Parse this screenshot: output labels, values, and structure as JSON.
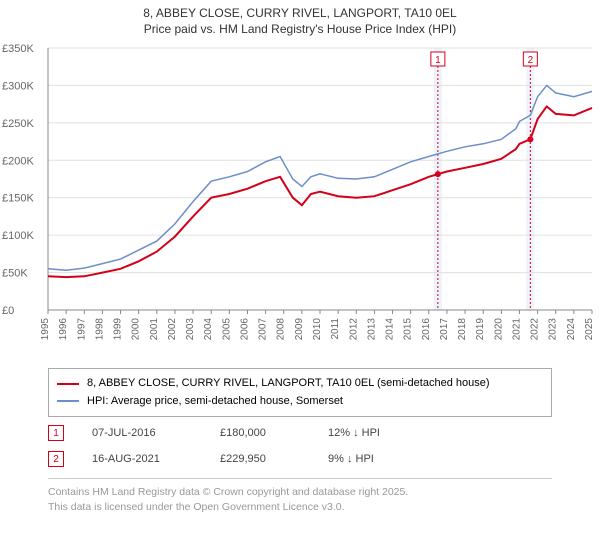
{
  "title": {
    "line1": "8, ABBEY CLOSE, CURRY RIVEL, LANGPORT, TA10 0EL",
    "line2": "Price paid vs. HM Land Registry's House Price Index (HPI)"
  },
  "chart": {
    "type": "line",
    "background_color": "#ffffff",
    "grid_color": "#e0e0e0",
    "axis_color": "#888888",
    "x": {
      "min": 1995,
      "max": 2025,
      "ticks": [
        1995,
        1996,
        1997,
        1998,
        1999,
        2000,
        2001,
        2002,
        2003,
        2004,
        2005,
        2006,
        2007,
        2008,
        2009,
        2010,
        2011,
        2012,
        2013,
        2014,
        2015,
        2016,
        2017,
        2018,
        2019,
        2020,
        2021,
        2022,
        2023,
        2024,
        2025
      ]
    },
    "y": {
      "min": 0,
      "max": 350000,
      "ticks": [
        0,
        50000,
        100000,
        150000,
        200000,
        250000,
        300000,
        350000
      ],
      "tick_labels": [
        "£0",
        "£50K",
        "£100K",
        "£150K",
        "£200K",
        "£250K",
        "£300K",
        "£350K"
      ]
    },
    "series": [
      {
        "name": "red",
        "color": "#d4001a",
        "width": 2,
        "points": [
          [
            1995,
            45000
          ],
          [
            1996,
            44000
          ],
          [
            1997,
            45000
          ],
          [
            1998,
            50000
          ],
          [
            1999,
            55000
          ],
          [
            2000,
            65000
          ],
          [
            2001,
            78000
          ],
          [
            2002,
            98000
          ],
          [
            2003,
            125000
          ],
          [
            2004,
            150000
          ],
          [
            2005,
            155000
          ],
          [
            2006,
            162000
          ],
          [
            2007,
            172000
          ],
          [
            2007.8,
            178000
          ],
          [
            2008.5,
            150000
          ],
          [
            2009,
            140000
          ],
          [
            2009.5,
            155000
          ],
          [
            2010,
            158000
          ],
          [
            2011,
            152000
          ],
          [
            2012,
            150000
          ],
          [
            2013,
            152000
          ],
          [
            2014,
            160000
          ],
          [
            2015,
            168000
          ],
          [
            2016,
            178000
          ],
          [
            2017,
            185000
          ],
          [
            2018,
            190000
          ],
          [
            2019,
            195000
          ],
          [
            2020,
            202000
          ],
          [
            2020.8,
            215000
          ],
          [
            2021,
            222000
          ],
          [
            2021.6,
            228000
          ],
          [
            2022,
            255000
          ],
          [
            2022.5,
            272000
          ],
          [
            2023,
            262000
          ],
          [
            2024,
            260000
          ],
          [
            2025,
            270000
          ]
        ]
      },
      {
        "name": "blue",
        "color": "#6b8fc9",
        "width": 1.5,
        "points": [
          [
            1995,
            55000
          ],
          [
            1996,
            53000
          ],
          [
            1997,
            56000
          ],
          [
            1998,
            62000
          ],
          [
            1999,
            68000
          ],
          [
            2000,
            80000
          ],
          [
            2001,
            92000
          ],
          [
            2002,
            115000
          ],
          [
            2003,
            145000
          ],
          [
            2004,
            172000
          ],
          [
            2005,
            178000
          ],
          [
            2006,
            185000
          ],
          [
            2007,
            198000
          ],
          [
            2007.8,
            205000
          ],
          [
            2008.5,
            175000
          ],
          [
            2009,
            165000
          ],
          [
            2009.5,
            178000
          ],
          [
            2010,
            182000
          ],
          [
            2011,
            176000
          ],
          [
            2012,
            175000
          ],
          [
            2013,
            178000
          ],
          [
            2014,
            188000
          ],
          [
            2015,
            198000
          ],
          [
            2016,
            205000
          ],
          [
            2017,
            212000
          ],
          [
            2018,
            218000
          ],
          [
            2019,
            222000
          ],
          [
            2020,
            228000
          ],
          [
            2020.8,
            242000
          ],
          [
            2021,
            252000
          ],
          [
            2021.6,
            260000
          ],
          [
            2022,
            285000
          ],
          [
            2022.5,
            300000
          ],
          [
            2023,
            290000
          ],
          [
            2024,
            285000
          ],
          [
            2025,
            292000
          ]
        ]
      }
    ],
    "markers": [
      {
        "num": "1",
        "x": 2016.5
      },
      {
        "num": "2",
        "x": 2021.6
      }
    ],
    "marker_band_color": "#eef2fa",
    "marker_line_color": "#d4001a"
  },
  "legend": {
    "red": "8, ABBEY CLOSE, CURRY RIVEL, LANGPORT, TA10 0EL (semi-detached house)",
    "blue": "HPI: Average price, semi-detached house, Somerset"
  },
  "events": [
    {
      "num": "1",
      "date": "07-JUL-2016",
      "price": "£180,000",
      "delta": "12% ↓ HPI"
    },
    {
      "num": "2",
      "date": "16-AUG-2021",
      "price": "£229,950",
      "delta": "9% ↓ HPI"
    }
  ],
  "footer": {
    "line1": "Contains HM Land Registry data © Crown copyright and database right 2025.",
    "line2": "This data is licensed under the Open Government Licence v3.0."
  }
}
